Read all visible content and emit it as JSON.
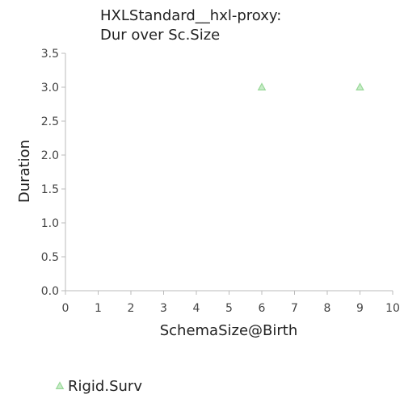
{
  "chart_data": {
    "type": "scatter",
    "title_lines": [
      "HXLStandard__hxl-proxy:",
      "Dur over Sc.Size"
    ],
    "xlabel": "SchemaSize@Birth",
    "ylabel": "Duration",
    "xlim": [
      0,
      10
    ],
    "ylim": [
      0,
      3.5
    ],
    "x_ticks": [
      "0",
      "1",
      "2",
      "3",
      "4",
      "5",
      "6",
      "7",
      "8",
      "9",
      "10"
    ],
    "y_ticks": [
      "0.0",
      "0.5",
      "1.0",
      "1.5",
      "2.0",
      "2.5",
      "3.0",
      "3.5"
    ],
    "grid": false,
    "legend_position": "bottom-left",
    "series": [
      {
        "name": "Rigid.Surv",
        "marker": "triangle",
        "color": "#98d898",
        "points": [
          {
            "x": 6,
            "y": 3.0
          },
          {
            "x": 9,
            "y": 3.0
          }
        ]
      }
    ]
  }
}
